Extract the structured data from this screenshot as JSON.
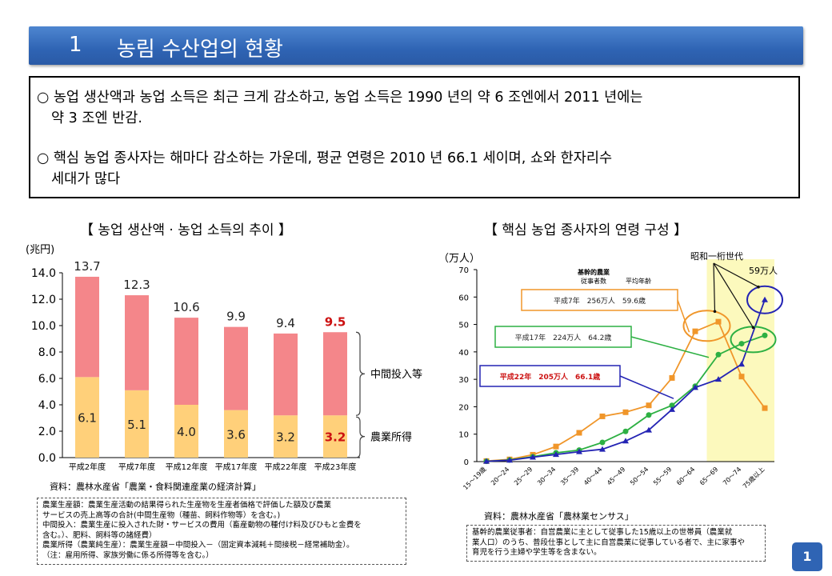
{
  "header": {
    "number": "1",
    "title": "농림 수산업의 현황"
  },
  "summary": {
    "bullet1_line1": "○ 농업 생산액과 농업 소득은 최근 크게 감소하고, 농업 소득은 1990 년의 약 6 조엔에서 2011 년에는",
    "bullet1_line2": "약 3 조엔 반감.",
    "bullet2_line1": "○ 핵심 농업 종사자는 해마다 감소하는 가운데, 평균 연령은 2010 년 66.1 세이며, 쇼와 한자리수",
    "bullet2_line2": "세대가 많다"
  },
  "chart_data": [
    {
      "type": "bar",
      "title": "【 농업 생산액 · 농업 소득의 추이 】",
      "ylabel": "(兆円)",
      "ylim": [
        0,
        14
      ],
      "yticks": [
        "0.0",
        "2.0",
        "4.0",
        "6.0",
        "8.0",
        "10.0",
        "12.0",
        "14.0"
      ],
      "categories": [
        "平成2年度",
        "平成7年度",
        "平成12年度",
        "平成17年度",
        "平成22年度",
        "平成23年度"
      ],
      "totals": [
        "13.7",
        "12.3",
        "10.6",
        "9.9",
        "9.4",
        "9.5"
      ],
      "series": [
        {
          "name": "農業所得",
          "values": [
            6.1,
            5.1,
            4.0,
            3.6,
            3.2,
            3.2
          ],
          "labels": [
            "6.1",
            "5.1",
            "4.0",
            "3.6",
            "3.2",
            "3.2"
          ],
          "color": "#ffd07a"
        },
        {
          "name": "中間投入等",
          "values": [
            7.6,
            7.2,
            6.6,
            6.3,
            6.2,
            6.3
          ],
          "color": "#f4868a"
        }
      ],
      "highlight_color": "#cc1111"
    },
    {
      "type": "line",
      "title": "【 핵심 농업 종사자의 연령 구성 】",
      "ylabel": "（万人）",
      "ylim": [
        0,
        70
      ],
      "yticks": [
        "0",
        "10",
        "20",
        "30",
        "40",
        "50",
        "60",
        "70"
      ],
      "categories": [
        "15～19歳",
        "20～24",
        "25～29",
        "30～34",
        "35～39",
        "40～44",
        "45～49",
        "50～54",
        "55～59",
        "60～64",
        "65～69",
        "70～74",
        "75歳以上"
      ],
      "series": [
        {
          "name": "平成7年　256万人　59.6歳",
          "color": "#f0962a",
          "values": [
            0.2,
            0.8,
            2.5,
            5.5,
            10.5,
            16.5,
            18.0,
            20.5,
            30.5,
            47.5,
            51.0,
            31.0,
            19.5
          ]
        },
        {
          "name": "平成17年　224万人　64.2歳",
          "color": "#2db043",
          "values": [
            0.1,
            0.6,
            1.8,
            3.2,
            4.2,
            7.0,
            11.0,
            17.0,
            20.5,
            27.5,
            39.0,
            43.0,
            46.0
          ]
        },
        {
          "name": "平成22年　205万人　66.1歳",
          "color": "#2424b4",
          "values": [
            0.1,
            0.5,
            1.6,
            2.6,
            3.6,
            4.5,
            7.5,
            11.5,
            19.0,
            27.0,
            30.0,
            35.5,
            59.0
          ]
        }
      ],
      "legend_header": [
        "基幹的農業",
        "従事者数",
        "平均年齢"
      ],
      "annotations": {
        "showa": "昭和一桁世代",
        "count": "59万人"
      }
    }
  ],
  "left_chart": {
    "callout_mid": "中間投入等",
    "callout_income": "農業所得",
    "source": "資料：農林水産省「農業・食料関連産業の経済計算」",
    "notes": [
      "農業生産額：農業生産活動の結果得られた生産物を生産者価格で評価した額及び農業",
      "サービスの売上高等の合計(中間生産物（種苗、飼料作物等）を含む。)",
      "中間投入：農業生産に投入された財・サービスの費用（畜産動物の種付け料及びひもと金費を",
      "含む。）、肥料、飼料等の諸経費）",
      "農業所得（農業純生産）：農業生産額－中間投入－（固定資本減耗＋間接税－経常補助金）。",
      "（注：雇用所得、家族労働に係る所得等を含む。）"
    ]
  },
  "right_chart": {
    "source": "資料：農林水産省「農林業センサス」",
    "notes": [
      "基幹的農業従事者：自営農業に主として従事した15歳以上の世帯員（農業就",
      "業人口）のうち、普段仕事として主に自営農業に従事している者で、主に家事や",
      "育児を行う主婦や学生等を含まない。"
    ]
  },
  "page_number": "1"
}
